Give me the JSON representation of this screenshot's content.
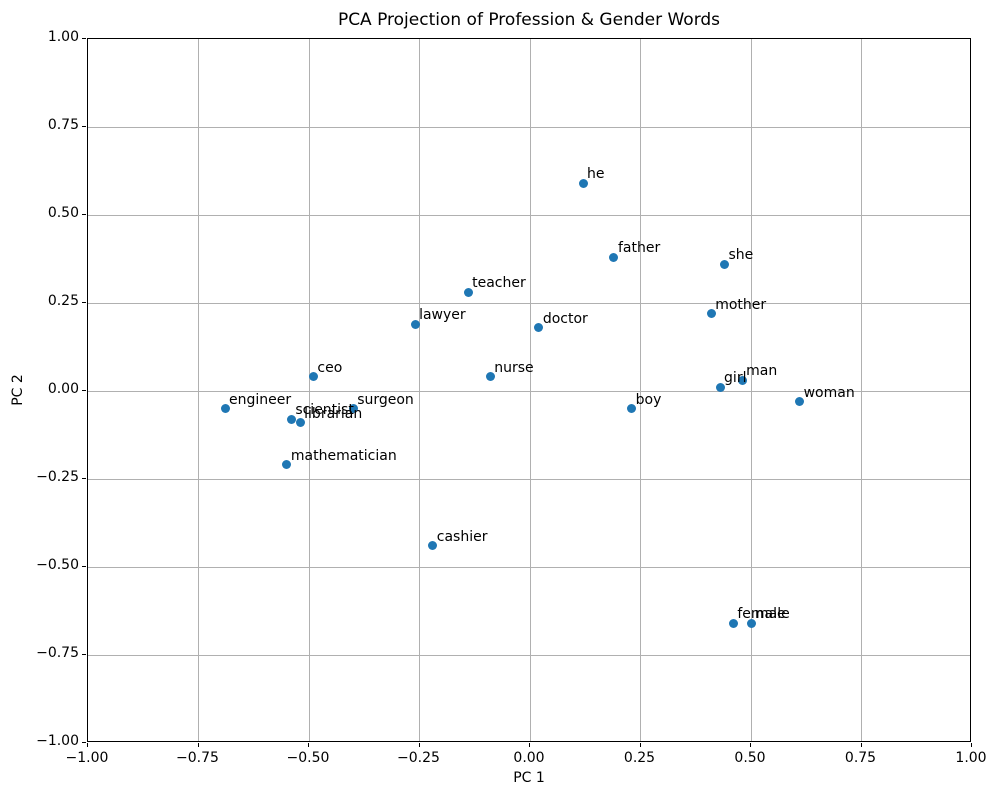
{
  "title": "PCA Projection of Profession & Gender Words",
  "xlabel": "PC 1",
  "ylabel": "PC 2",
  "colors": {
    "marker": "#1f77b4",
    "grid": "#b0b0b0",
    "spine": "#000000",
    "background": "#ffffff"
  },
  "chart_data": {
    "type": "scatter",
    "title": "PCA Projection of Profession & Gender Words",
    "xlabel": "PC 1",
    "ylabel": "PC 2",
    "xlim": [
      -1.0,
      1.0
    ],
    "ylim": [
      -1.0,
      1.0
    ],
    "grid": true,
    "legend": false,
    "marker_color": "#1f77b4",
    "marker_size_px": 9,
    "x_ticks": {
      "values": [
        -1.0,
        -0.75,
        -0.5,
        -0.25,
        0.0,
        0.25,
        0.5,
        0.75,
        1.0
      ],
      "labels": [
        "−1.00",
        "−0.75",
        "−0.50",
        "−0.25",
        "0.00",
        "0.25",
        "0.50",
        "0.75",
        "1.00"
      ]
    },
    "y_ticks": {
      "values": [
        -1.0,
        -0.75,
        -0.5,
        -0.25,
        0.0,
        0.25,
        0.5,
        0.75,
        1.0
      ],
      "labels": [
        "−1.00",
        "−0.75",
        "−0.50",
        "−0.25",
        "0.00",
        "0.25",
        "0.50",
        "0.75",
        "1.00"
      ]
    },
    "points": [
      {
        "label": "he",
        "x": 0.12,
        "y": 0.59
      },
      {
        "label": "father",
        "x": 0.19,
        "y": 0.38
      },
      {
        "label": "she",
        "x": 0.44,
        "y": 0.36
      },
      {
        "label": "teacher",
        "x": -0.14,
        "y": 0.28
      },
      {
        "label": "mother",
        "x": 0.41,
        "y": 0.22
      },
      {
        "label": "lawyer",
        "x": -0.26,
        "y": 0.19
      },
      {
        "label": "doctor",
        "x": 0.02,
        "y": 0.18
      },
      {
        "label": "ceo",
        "x": -0.49,
        "y": 0.04
      },
      {
        "label": "nurse",
        "x": -0.09,
        "y": 0.04
      },
      {
        "label": "man",
        "x": 0.48,
        "y": 0.03
      },
      {
        "label": "girl",
        "x": 0.43,
        "y": 0.01
      },
      {
        "label": "woman",
        "x": 0.61,
        "y": -0.03
      },
      {
        "label": "engineer",
        "x": -0.69,
        "y": -0.05
      },
      {
        "label": "boy",
        "x": 0.23,
        "y": -0.05
      },
      {
        "label": "surgeon",
        "x": -0.4,
        "y": -0.05
      },
      {
        "label": "scientist",
        "x": -0.54,
        "y": -0.08
      },
      {
        "label": "librarian",
        "x": -0.52,
        "y": -0.09
      },
      {
        "label": "mathematician",
        "x": -0.55,
        "y": -0.21
      },
      {
        "label": "cashier",
        "x": -0.22,
        "y": -0.44
      },
      {
        "label": "female",
        "x": 0.46,
        "y": -0.66
      },
      {
        "label": "male",
        "x": 0.5,
        "y": -0.66
      }
    ]
  }
}
